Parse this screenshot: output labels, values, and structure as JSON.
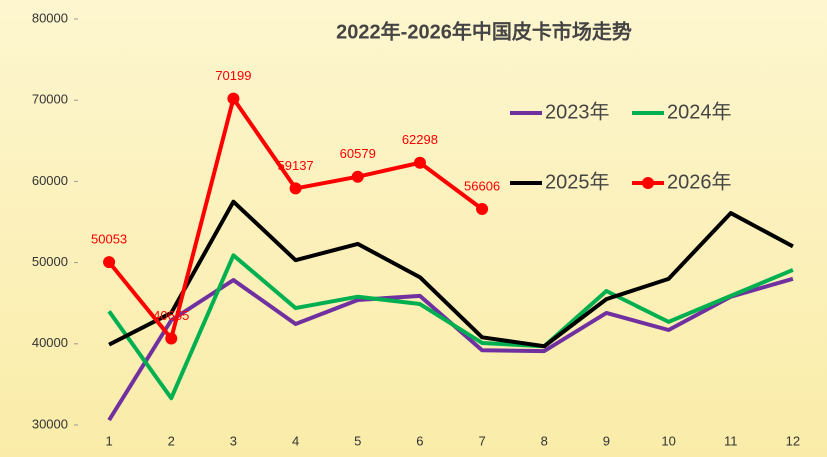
{
  "chart_data": {
    "type": "line",
    "title": "2022年-2026年中国皮卡市场走势",
    "categories": [
      "1",
      "2",
      "3",
      "4",
      "5",
      "6",
      "7",
      "8",
      "9",
      "10",
      "11",
      "12"
    ],
    "ylim": [
      30000,
      80000
    ],
    "yticks": [
      30000,
      40000,
      50000,
      60000,
      70000,
      80000
    ],
    "series": [
      {
        "name": "2023年",
        "color": "#7030a0",
        "values": [
          30600,
          42900,
          47850,
          42440,
          45400,
          45900,
          39200,
          39100,
          43800,
          41700,
          45800,
          48000
        ]
      },
      {
        "name": "2024年",
        "color": "#00b050",
        "values": [
          44000,
          33300,
          50900,
          44400,
          45800,
          44900,
          40100,
          39700,
          46500,
          42700,
          45900,
          49100
        ]
      },
      {
        "name": "2025年",
        "color": "#000000",
        "values": [
          39900,
          43800,
          57500,
          50300,
          52300,
          48200,
          40800,
          39700,
          45500,
          48000,
          56100,
          52000
        ]
      },
      {
        "name": "2026年",
        "color": "#ff0000",
        "markers": true,
        "data_labels": true,
        "values": [
          50053,
          40655,
          70199,
          59137,
          60579,
          62298,
          56606,
          null,
          null,
          null,
          null,
          null
        ]
      }
    ]
  }
}
